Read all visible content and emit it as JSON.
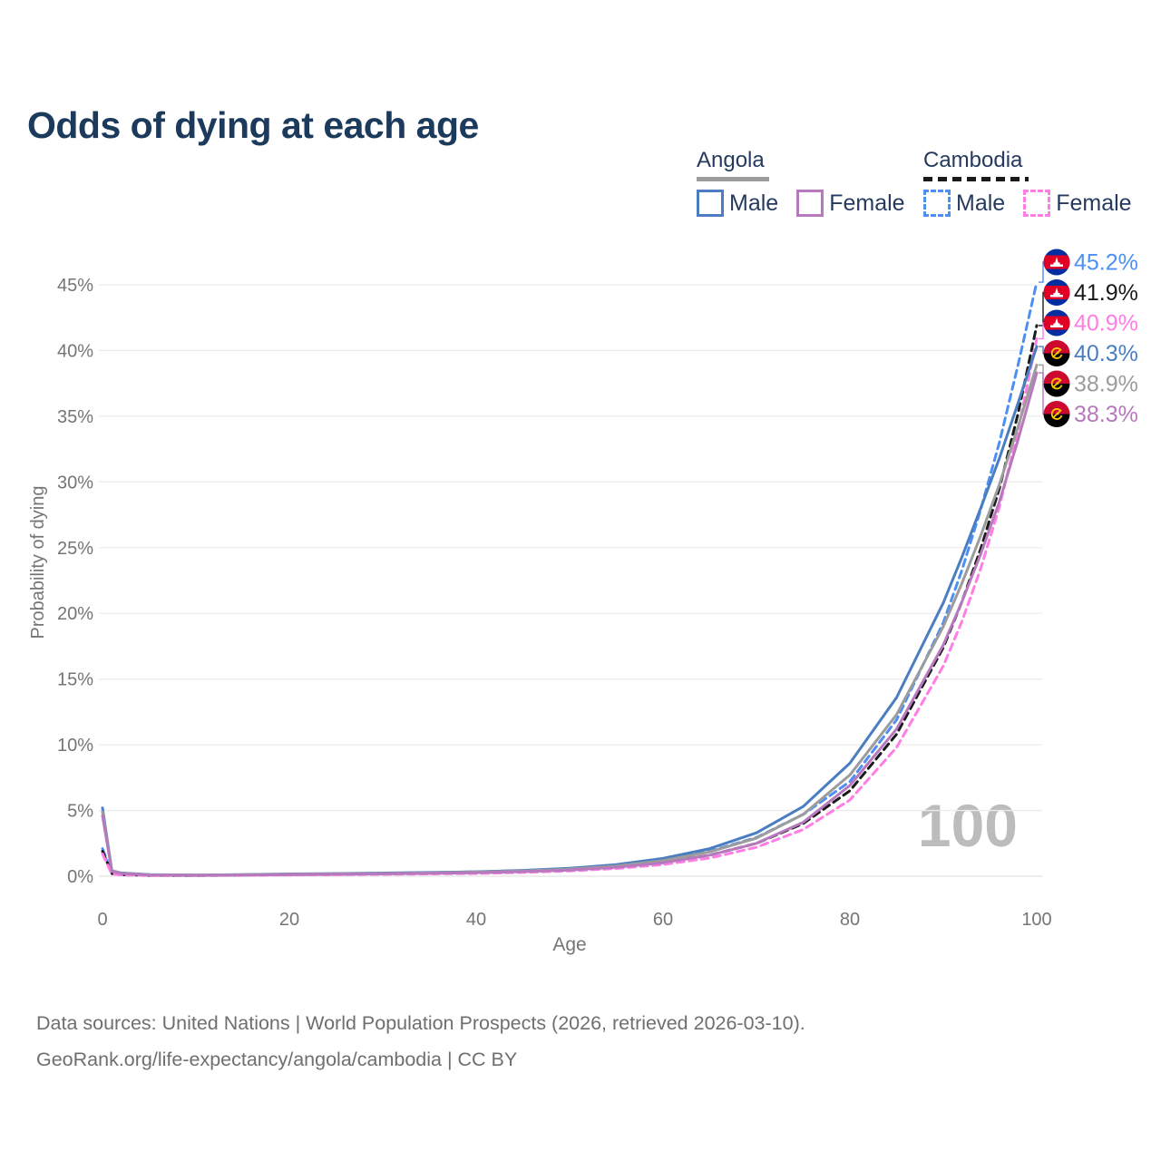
{
  "title": "Odds of dying at each age",
  "watermark": "100",
  "footer": {
    "line1": "Data sources: United Nations | World Population Prospects (2026, retrieved 2026-03-10).",
    "line2": "GeoRank.org/life-expectancy/angola/cambodia | CC BY"
  },
  "legend": {
    "groups": [
      {
        "country": "Angola",
        "line_style": "solid",
        "underline_color": "#9c9c9c",
        "items": [
          {
            "label": "Male",
            "color": "#4a7ec1",
            "dashed": false
          },
          {
            "label": "Female",
            "color": "#b779bd",
            "dashed": false
          }
        ]
      },
      {
        "country": "Cambodia",
        "line_style": "dashed",
        "underline_color": "#1a1a1a",
        "items": [
          {
            "label": "Male",
            "color": "#4d8ff2",
            "dashed": true
          },
          {
            "label": "Female",
            "color": "#ff7de4",
            "dashed": true
          }
        ]
      }
    ]
  },
  "chart_data": {
    "type": "line",
    "title": "Odds of dying at each age",
    "xlabel": "Age",
    "ylabel": "Probability of dying",
    "xlim": [
      0,
      100
    ],
    "ylim": [
      0,
      45
    ],
    "grid": true,
    "legend_position": "top-right",
    "x_ticks": [
      0,
      20,
      40,
      60,
      80,
      100
    ],
    "x_tick_labels": [
      "0",
      "20",
      "40",
      "60",
      "80",
      "100"
    ],
    "y_ticks": [
      0,
      5,
      10,
      15,
      20,
      25,
      30,
      35,
      40,
      45
    ],
    "y_tick_labels": [
      "0%",
      "5%",
      "10%",
      "15%",
      "20%",
      "25%",
      "30%",
      "35%",
      "40%",
      "45%"
    ],
    "x": [
      0,
      1,
      2,
      5,
      10,
      15,
      20,
      25,
      30,
      35,
      40,
      45,
      50,
      55,
      60,
      65,
      70,
      75,
      80,
      85,
      90,
      92,
      94,
      96,
      98,
      100
    ],
    "series": [
      {
        "name": "Cambodia Male",
        "country": "cambodia",
        "sex": "male",
        "color": "#4d8ff2",
        "dashed": true,
        "end_label": "45.2%",
        "values": [
          2.1,
          0.22,
          0.13,
          0.07,
          0.06,
          0.09,
          0.14,
          0.18,
          0.22,
          0.27,
          0.33,
          0.43,
          0.58,
          0.83,
          1.22,
          1.9,
          2.95,
          4.7,
          7.2,
          11.9,
          19.3,
          23.3,
          27.9,
          33.0,
          38.9,
          45.2
        ]
      },
      {
        "name": "Cambodia Total",
        "country": "cambodia",
        "sex": "total",
        "color": "#1a1a1a",
        "dashed": true,
        "end_label": "41.9%",
        "values": [
          1.9,
          0.19,
          0.11,
          0.06,
          0.05,
          0.08,
          0.12,
          0.15,
          0.18,
          0.22,
          0.27,
          0.35,
          0.48,
          0.7,
          1.03,
          1.6,
          2.5,
          4.0,
          6.5,
          10.8,
          17.4,
          20.9,
          24.9,
          29.5,
          35.2,
          41.9
        ]
      },
      {
        "name": "Cambodia Female",
        "country": "cambodia",
        "sex": "female",
        "color": "#ff7de4",
        "dashed": true,
        "end_label": "40.9%",
        "values": [
          1.7,
          0.17,
          0.1,
          0.05,
          0.04,
          0.06,
          0.09,
          0.11,
          0.14,
          0.17,
          0.21,
          0.28,
          0.4,
          0.59,
          0.88,
          1.38,
          2.2,
          3.55,
          5.8,
          9.8,
          16.0,
          19.4,
          23.4,
          28.1,
          33.9,
          40.9
        ]
      },
      {
        "name": "Angola Male",
        "country": "angola",
        "sex": "male",
        "color": "#4a7ec1",
        "dashed": false,
        "end_label": "40.3%",
        "values": [
          5.2,
          0.42,
          0.25,
          0.12,
          0.09,
          0.12,
          0.17,
          0.2,
          0.24,
          0.28,
          0.34,
          0.44,
          0.6,
          0.88,
          1.35,
          2.1,
          3.3,
          5.3,
          8.6,
          13.6,
          20.8,
          24.3,
          28.0,
          31.8,
          36.0,
          40.3
        ]
      },
      {
        "name": "Angola Total",
        "country": "angola",
        "sex": "total",
        "color": "#9c9c9c",
        "dashed": false,
        "end_label": "38.9%",
        "values": [
          4.9,
          0.4,
          0.23,
          0.11,
          0.08,
          0.11,
          0.15,
          0.18,
          0.21,
          0.25,
          0.31,
          0.4,
          0.54,
          0.78,
          1.18,
          1.85,
          2.9,
          4.7,
          7.7,
          12.3,
          19.0,
          22.3,
          25.9,
          29.8,
          34.2,
          38.9
        ]
      },
      {
        "name": "Angola Female",
        "country": "angola",
        "sex": "female",
        "color": "#b779bd",
        "dashed": false,
        "end_label": "38.3%",
        "values": [
          4.6,
          0.37,
          0.21,
          0.1,
          0.07,
          0.09,
          0.12,
          0.15,
          0.18,
          0.22,
          0.27,
          0.35,
          0.47,
          0.68,
          1.02,
          1.6,
          2.5,
          4.1,
          6.9,
          11.2,
          17.6,
          20.9,
          24.5,
          28.5,
          33.2,
          38.3
        ]
      }
    ],
    "flag_colors": {
      "cambodia_blue": "#032ea1",
      "cambodia_red": "#e00025",
      "cambodia_temple": "#ffffff",
      "angola_red": "#cc092f",
      "angola_black": "#000000",
      "angola_emblem": "#ffcb00"
    }
  }
}
